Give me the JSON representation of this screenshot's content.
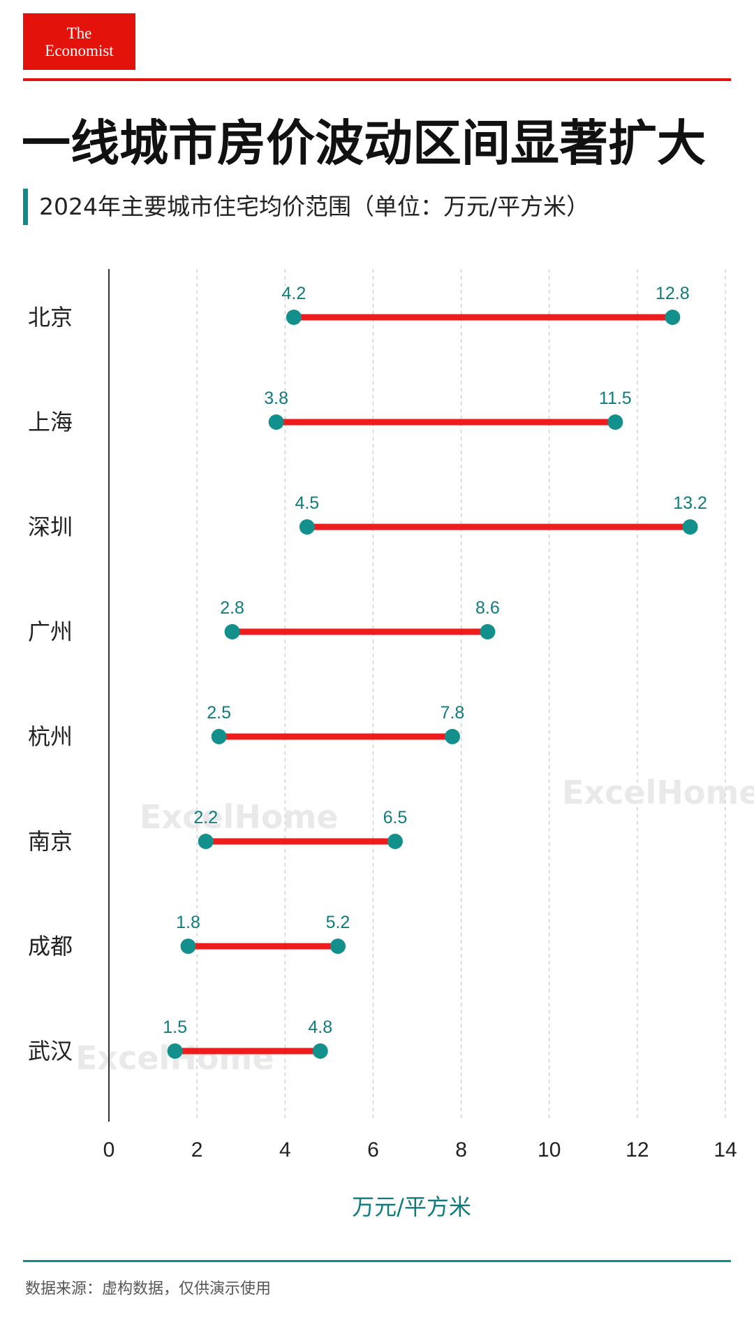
{
  "logo": {
    "line1": "The",
    "line2": "Economist"
  },
  "title": "一线城市房价波动区间显著扩大",
  "subtitle": "2024年主要城市住宅均价范围（单位：万元/平方米）",
  "footnote": "数据来源：虚构数据，仅供演示使用",
  "watermark": "ExcelHome",
  "colors": {
    "brand_red": "#e3120b",
    "range_bar": "#ee1c1c",
    "dot": "#13908b",
    "label": "#0e7c7f",
    "accent": "#0f8a8d"
  },
  "chart_data": {
    "type": "dumbbell",
    "categories": [
      "北京",
      "上海",
      "深圳",
      "广州",
      "杭州",
      "南京",
      "成都",
      "武汉"
    ],
    "series": [
      {
        "name": "min",
        "values": [
          4.2,
          3.8,
          4.5,
          2.8,
          2.5,
          2.2,
          1.8,
          1.5
        ]
      },
      {
        "name": "max",
        "values": [
          12.8,
          11.5,
          13.2,
          8.6,
          7.8,
          6.5,
          5.2,
          4.8
        ]
      }
    ],
    "xlabel": "万元/平方米",
    "xlim": [
      0,
      14
    ],
    "xticks": [
      0,
      2,
      4,
      6,
      8,
      10,
      12,
      14
    ],
    "grid": "vertical-dashed"
  }
}
